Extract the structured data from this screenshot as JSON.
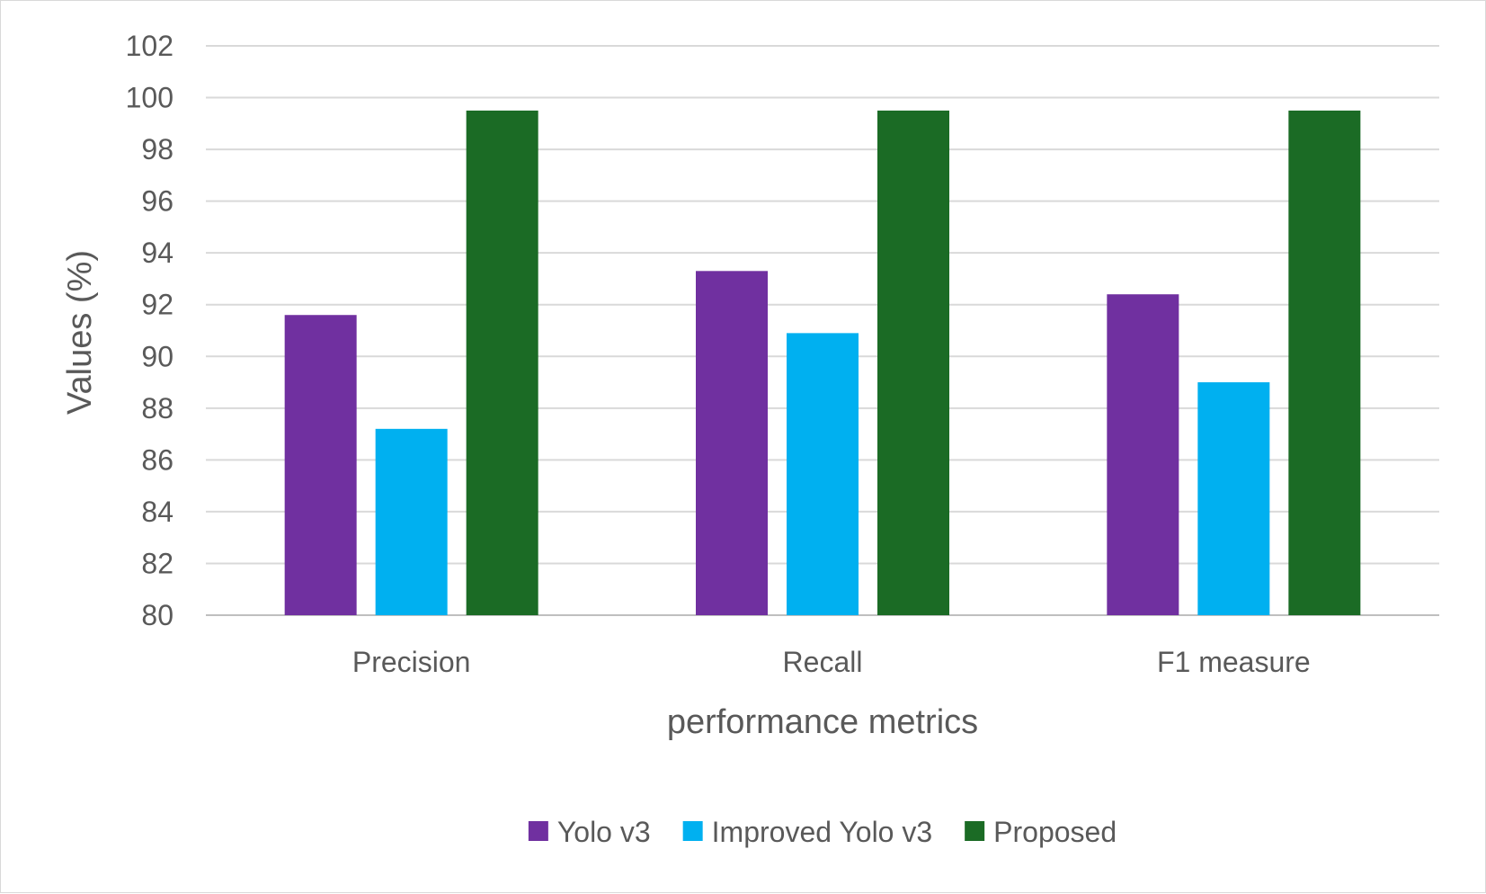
{
  "chart_data": {
    "type": "bar",
    "title": "",
    "xlabel": "performance metrics",
    "ylabel": "Values (%)",
    "ylim": [
      80,
      102
    ],
    "ytick_step": 2,
    "yticks": [
      "80",
      "82",
      "84",
      "86",
      "88",
      "90",
      "92",
      "94",
      "96",
      "98",
      "100",
      "102"
    ],
    "grid": true,
    "legend_position": "bottom",
    "categories": [
      "Precision",
      "Recall",
      "F1 measure"
    ],
    "series": [
      {
        "name": "Yolo v3",
        "color": "#7030a0",
        "values": [
          91.6,
          93.3,
          92.4
        ]
      },
      {
        "name": "Improved Yolo v3",
        "color": "#00b0f0",
        "values": [
          87.2,
          90.9,
          89.0
        ]
      },
      {
        "name": "Proposed",
        "color": "#1b6b25",
        "values": [
          99.5,
          99.5,
          99.5
        ]
      }
    ]
  }
}
